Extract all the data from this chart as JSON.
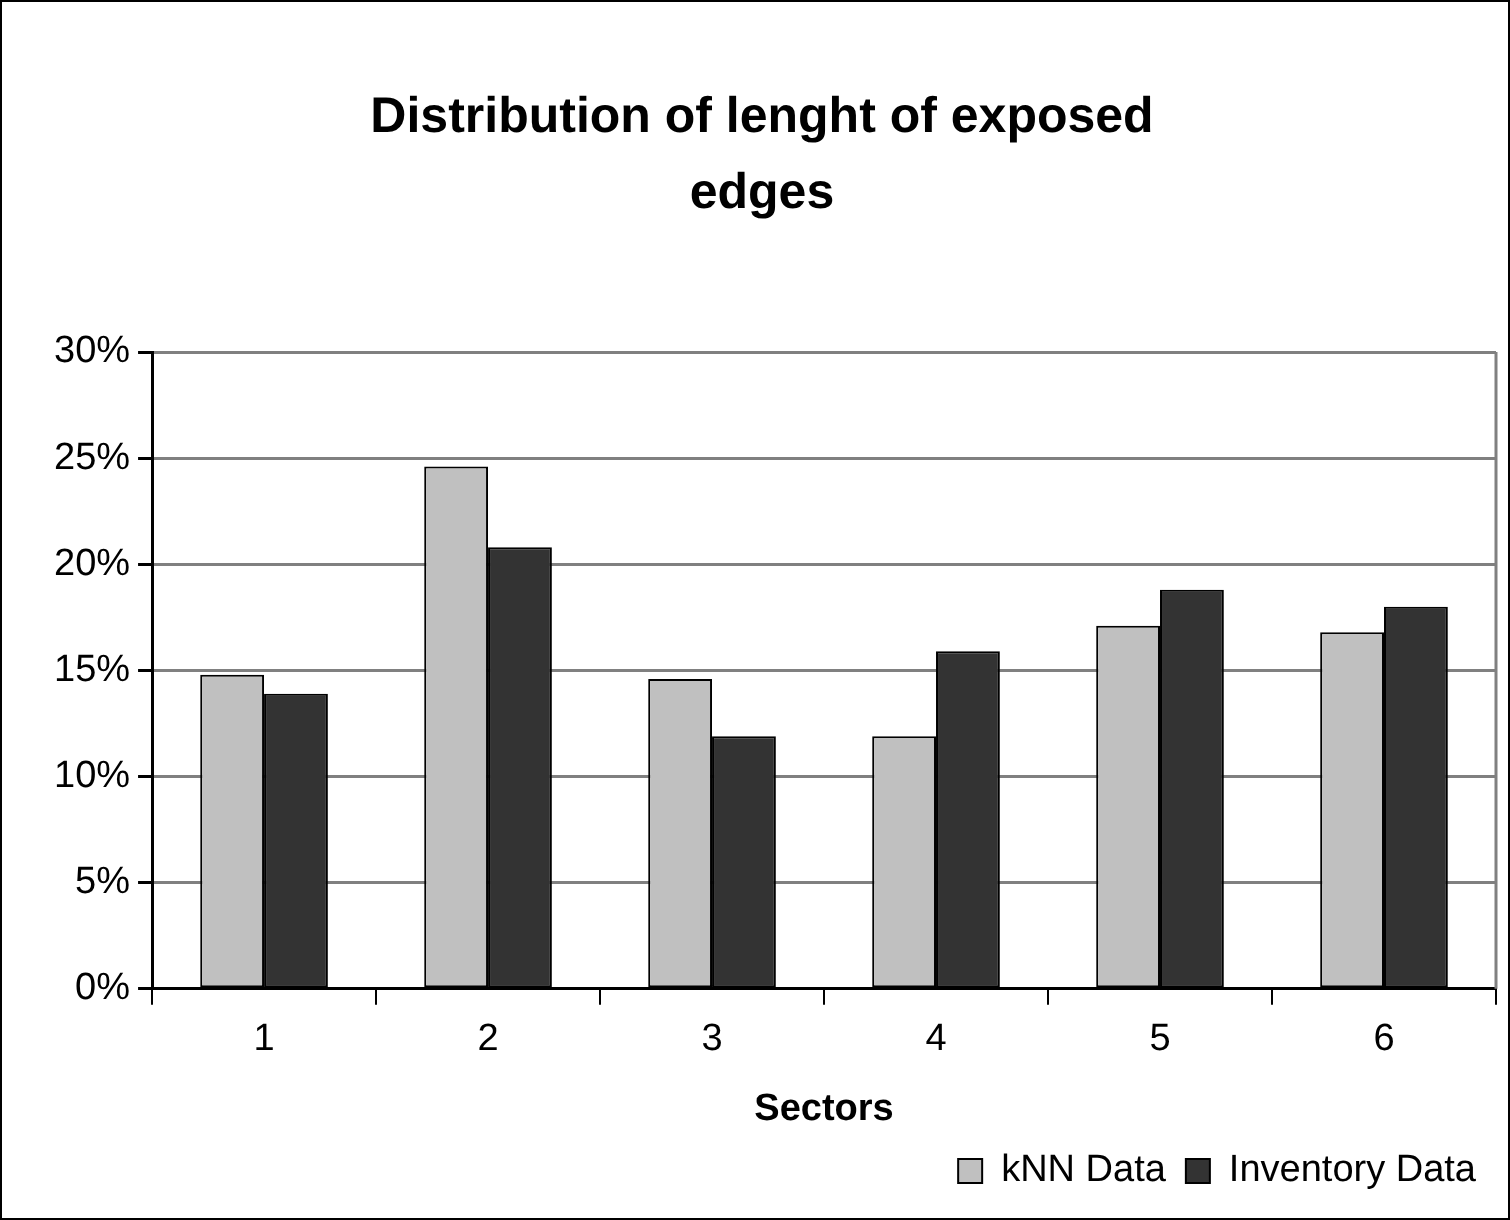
{
  "chart_data": {
    "type": "bar",
    "title": "Distribution of lenght of exposed edges",
    "xlabel": "Sectors",
    "categories": [
      "1",
      "2",
      "3",
      "4",
      "5",
      "6"
    ],
    "series": [
      {
        "name": "kNN Data",
        "color": "#c0c0c0",
        "values": [
          14.8,
          24.6,
          14.6,
          11.9,
          17.1,
          16.8
        ]
      },
      {
        "name": "Inventory Data",
        "color": "#333333",
        "values": [
          13.9,
          20.8,
          11.9,
          15.9,
          18.8,
          18.0
        ]
      }
    ],
    "ylim": [
      0,
      30
    ],
    "yticks": [
      {
        "value": 0,
        "label": "0%"
      },
      {
        "value": 5,
        "label": "5%"
      },
      {
        "value": 10,
        "label": "10%"
      },
      {
        "value": 15,
        "label": "15%"
      },
      {
        "value": 20,
        "label": "20%"
      },
      {
        "value": 25,
        "label": "25%"
      },
      {
        "value": 30,
        "label": "30%"
      }
    ],
    "grid": "y",
    "legend": "bottom right"
  }
}
